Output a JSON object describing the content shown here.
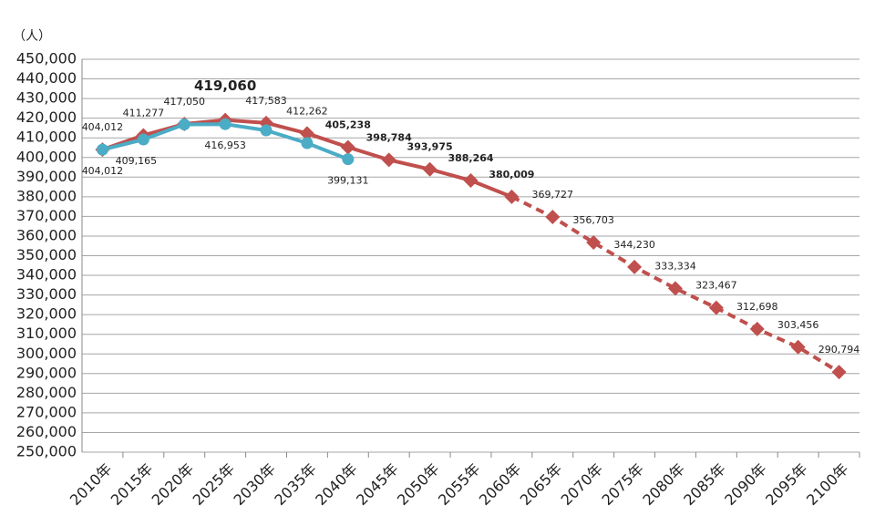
{
  "chart_data": {
    "type": "line",
    "y_unit_label": "（人）",
    "categories": [
      "2010年",
      "2015年",
      "2020年",
      "2025年",
      "2030年",
      "2035年",
      "2040年",
      "2045年",
      "2050年",
      "2055年",
      "2060年",
      "2065年",
      "2070年",
      "2075年",
      "2080年",
      "2085年",
      "2090年",
      "2095年",
      "2100年"
    ],
    "series": [
      {
        "color": "#c0504d",
        "marker": "diamond",
        "values": [
          404012,
          411277,
          417050,
          419060,
          417583,
          412262,
          405238,
          398784,
          393975,
          388264,
          380009,
          369727,
          356703,
          344230,
          333334,
          323467,
          312698,
          303456,
          290794
        ],
        "value_labels": [
          "404,012",
          "411,277",
          "417,050",
          "419,060",
          "417,583",
          "412,262",
          "405,238",
          "398,784",
          "393,975",
          "388,264",
          "380,009",
          "369,727",
          "356,703",
          "344,230",
          "333,334",
          "323,467",
          "312,698",
          "303,456",
          "290,794"
        ]
      },
      {
        "color": "#4bacc6",
        "marker": "circle",
        "values": [
          404012,
          409165,
          416800,
          416953,
          413800,
          407300,
          399131,
          null,
          null,
          null,
          null,
          null,
          null,
          null,
          null,
          null,
          null,
          null,
          null
        ],
        "value_labels": [
          "404,012",
          "409,165",
          null,
          "416,953",
          null,
          null,
          "399,131",
          null,
          null,
          null,
          null,
          null,
          null,
          null,
          null,
          null,
          null,
          null,
          null
        ]
      }
    ],
    "ylim": [
      250000,
      450000
    ],
    "yticks": [
      {
        "value": 250000,
        "label": "250,000"
      },
      {
        "value": 260000,
        "label": "260,000"
      },
      {
        "value": 270000,
        "label": "270,000"
      },
      {
        "value": 280000,
        "label": "280,000"
      },
      {
        "value": 290000,
        "label": "290,000"
      },
      {
        "value": 300000,
        "label": "300,000"
      },
      {
        "value": 310000,
        "label": "310,000"
      },
      {
        "value": 320000,
        "label": "320,000"
      },
      {
        "value": 330000,
        "label": "330,000"
      },
      {
        "value": 340000,
        "label": "340,000"
      },
      {
        "value": 350000,
        "label": "350,000"
      },
      {
        "value": 360000,
        "label": "360,000"
      },
      {
        "value": 370000,
        "label": "370,000"
      },
      {
        "value": 380000,
        "label": "380,000"
      },
      {
        "value": 390000,
        "label": "390,000"
      },
      {
        "value": 400000,
        "label": "400,000"
      },
      {
        "value": 410000,
        "label": "410,000"
      },
      {
        "value": 420000,
        "label": "420,000"
      },
      {
        "value": 430000,
        "label": "430,000"
      },
      {
        "value": 440000,
        "label": "440,000"
      },
      {
        "value": 450000,
        "label": "450,000"
      }
    ],
    "grid": true
  }
}
